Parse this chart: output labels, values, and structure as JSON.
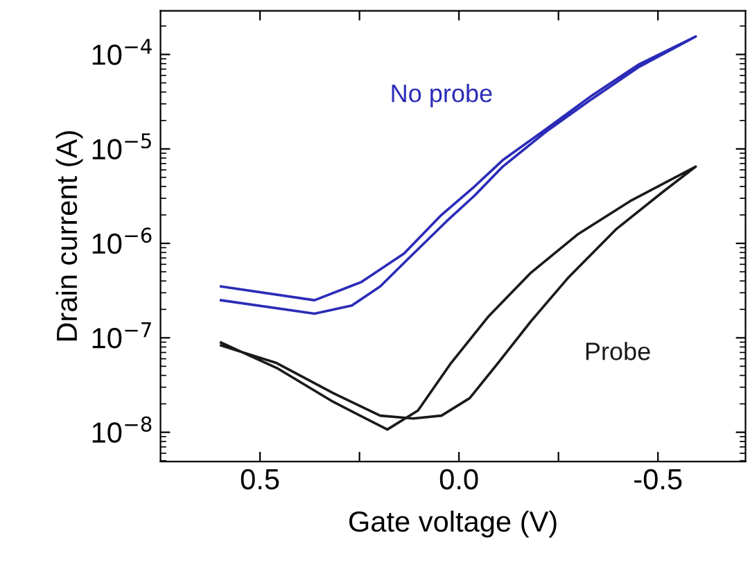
{
  "chart_data": {
    "type": "line",
    "xlabel": "Gate voltage (V)",
    "ylabel": "Drain current (A)",
    "log": "y",
    "grid": false,
    "xlim": [
      0.75,
      -0.72
    ],
    "xticks": [
      0.5,
      {
        "value": 0.25,
        "label": null
      },
      {
        "value": 0.0,
        "label": "0.0"
      },
      {
        "value": -0.25,
        "label": null
      },
      -0.5
    ],
    "ylim": [
      4.9e-09,
      0.00029
    ],
    "yticks": [
      {
        "value": 1e-08,
        "label": "10$^{−8}$"
      },
      {
        "value": 1e-07,
        "label": "10$^{−7}$"
      },
      {
        "value": 1e-06,
        "label": "10$^{−6}$"
      },
      {
        "value": 1e-05,
        "label": "10$^{−5}$"
      },
      {
        "value": 0.0001,
        "label": "10$^{−4}$"
      }
    ],
    "series": [
      {
        "name": "No probe",
        "color": "#2b2bb8",
        "x": [
          0.598,
          0.363,
          0.245,
          0.138,
          0.044,
          -0.039,
          -0.11,
          -0.217,
          -0.335,
          -0.453,
          -0.595,
          -0.453,
          -0.335,
          -0.217,
          -0.11,
          -0.039,
          0.032,
          0.127,
          0.198,
          0.269,
          0.363,
          0.598
        ],
        "values": [
          3.5e-07,
          2.5e-07,
          3.9e-07,
          7.8e-07,
          2e-06,
          4e-06,
          7.6e-06,
          1.6e-05,
          3.7e-05,
          7.9e-05,
          0.000155,
          7.4e-05,
          3.4e-05,
          1.5e-05,
          6.5e-06,
          3.2e-06,
          1.7e-06,
          6.9e-07,
          3.5e-07,
          2.2e-07,
          1.8e-07,
          2.5e-07
        ]
      },
      {
        "name": "Probe",
        "color": "#1a1a1a",
        "x": [
          0.598,
          0.458,
          0.316,
          0.18,
          0.103,
          0.02,
          -0.075,
          -0.181,
          -0.3,
          -0.43,
          -0.595,
          -0.512,
          -0.394,
          -0.276,
          -0.181,
          -0.098,
          -0.027,
          0.044,
          0.115,
          0.198,
          0.316,
          0.458,
          0.598
        ],
        "values": [
          8.9e-08,
          4.8e-08,
          2.1e-08,
          1.07e-08,
          1.7e-08,
          5.4e-08,
          1.7e-07,
          4.9e-07,
          1.26e-06,
          2.8e-06,
          6.5e-06,
          3.5e-06,
          1.4e-06,
          4.4e-07,
          1.5e-07,
          5.4e-08,
          2.3e-08,
          1.5e-08,
          1.4e-08,
          1.5e-08,
          2.6e-08,
          5.4e-08,
          8.3e-08
        ]
      }
    ]
  }
}
